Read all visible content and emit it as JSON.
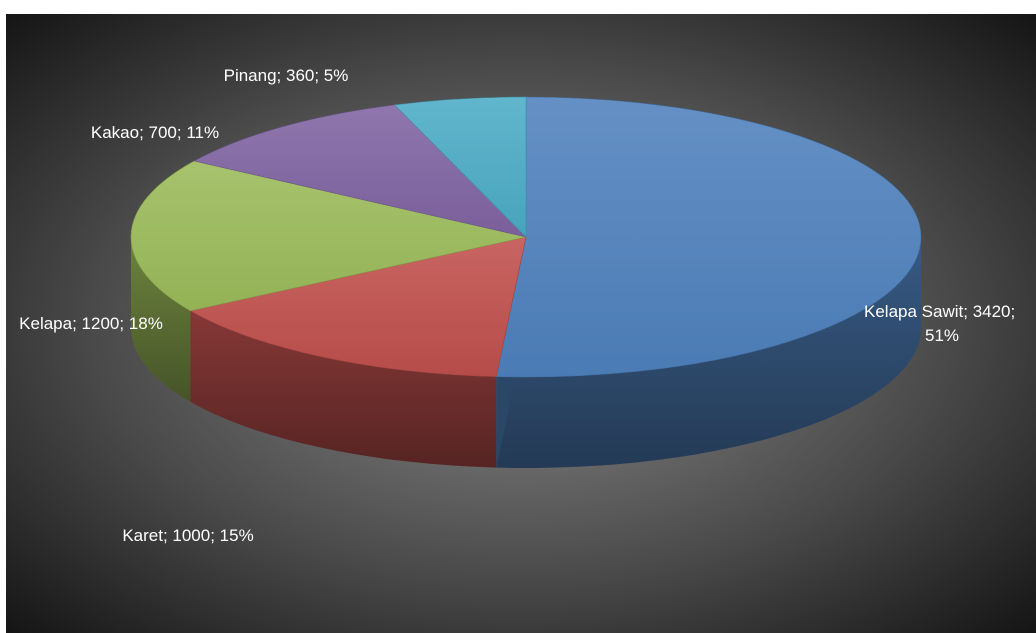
{
  "chart_data": {
    "type": "pie",
    "style": "3d",
    "title": "",
    "legend": "none",
    "background": "dark radial gradient",
    "slices": [
      {
        "label": "Kelapa Sawit",
        "value": 3420,
        "percent": "51%",
        "color": "#4f81bd"
      },
      {
        "label": "Karet",
        "value": 1000,
        "percent": "15%",
        "color": "#c0504d"
      },
      {
        "label": "Kelapa",
        "value": 1200,
        "percent": "18%",
        "color": "#9bbb59"
      },
      {
        "label": "Kakao",
        "value": 700,
        "percent": "11%",
        "color": "#8064a2"
      },
      {
        "label": "Pinang",
        "value": 360,
        "percent": "5%",
        "color": "#4bacc6"
      }
    ],
    "data_labels": {
      "kelapa_sawit_line1": "Kelapa Sawit; 3420;",
      "kelapa_sawit_line2": "51%",
      "karet": "Karet; 1000; 15%",
      "kelapa": "Kelapa; 1200; 18%",
      "kakao": "Kakao; 700; 11%",
      "pinang": "Pinang; 360; 5%"
    }
  }
}
